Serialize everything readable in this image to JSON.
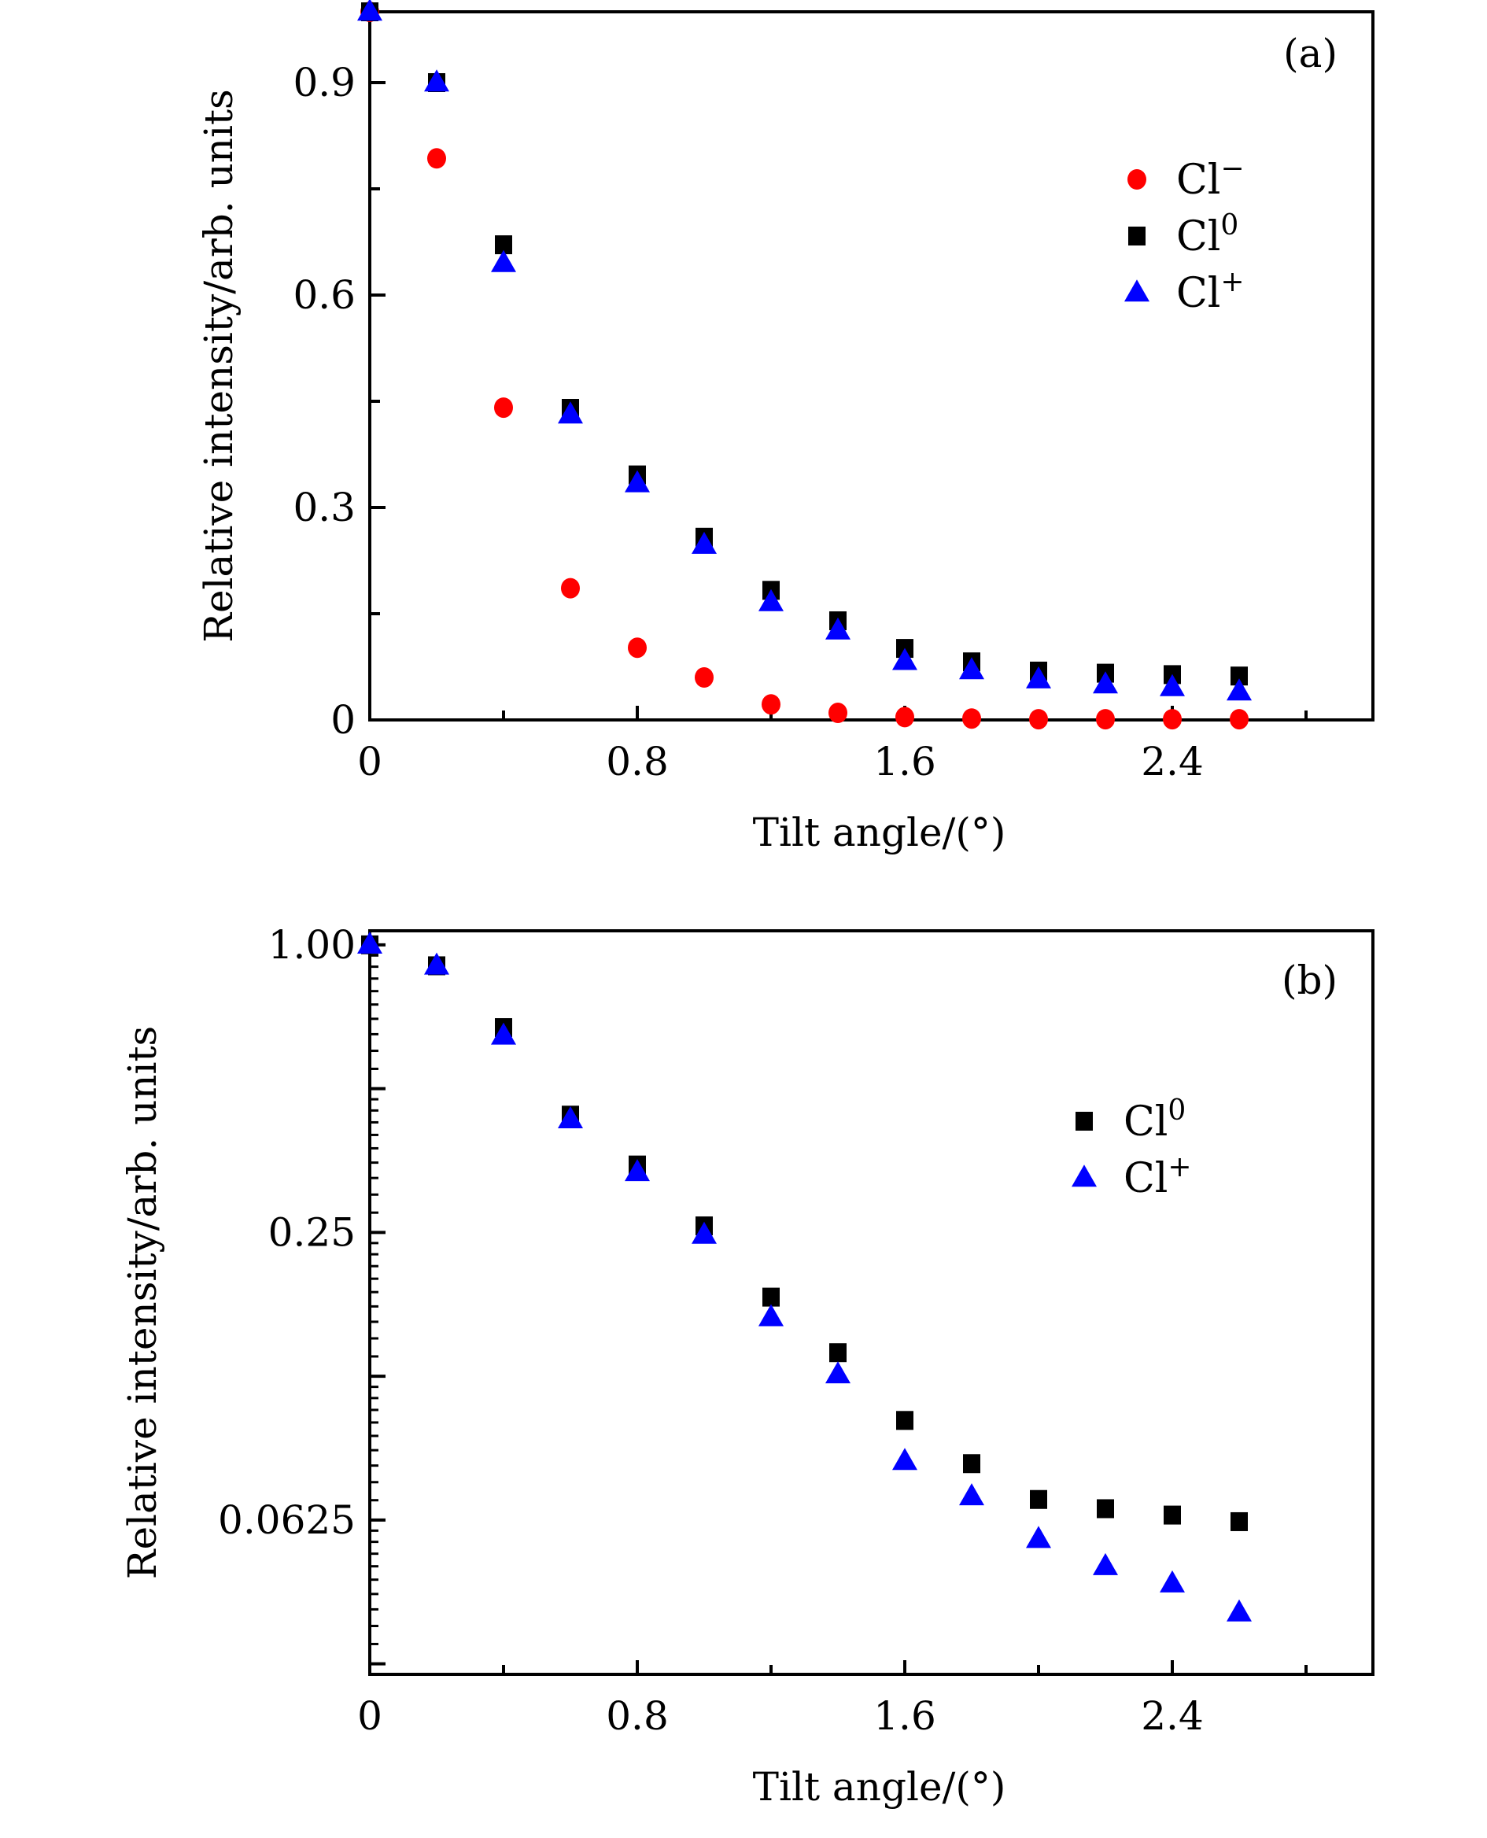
{
  "chart_data": [
    {
      "type": "scatter",
      "panel_label": "(a)",
      "xlabel": "Tilt angle/(°)",
      "ylabel": "Relative intensity/arb. units",
      "xlim": [
        0,
        3.0
      ],
      "ylim": [
        0,
        1.0
      ],
      "yscale": "linear",
      "x_ticks": [
        0,
        0.8,
        1.6,
        2.4
      ],
      "x_tick_labels": [
        "0",
        "0.8",
        "1.6",
        "2.4"
      ],
      "x_minor_step": 0.4,
      "y_ticks": [
        0,
        0.3,
        0.6,
        0.9
      ],
      "y_tick_labels": [
        "0",
        "0.3",
        "0.6",
        "0.9"
      ],
      "y_minor_step": 0.15,
      "grid": false,
      "legend_position": "upper-right",
      "x": [
        0,
        0.2,
        0.4,
        0.6,
        0.8,
        1.0,
        1.2,
        1.4,
        1.6,
        1.8,
        2.0,
        2.2,
        2.4,
        2.6
      ],
      "series": [
        {
          "name": "Cl−",
          "base": "Cl",
          "sup": "−",
          "marker": "circle",
          "color": "#ff0000",
          "values": [
            1.0,
            0.793,
            0.441,
            0.186,
            0.102,
            0.06,
            0.022,
            0.01,
            0.004,
            0.002,
            0.001,
            0.001,
            0.001,
            0.001
          ]
        },
        {
          "name": "Cl0",
          "base": "Cl",
          "sup": "0",
          "marker": "square",
          "color": "#000000",
          "values": [
            1.0,
            0.9,
            0.671,
            0.44,
            0.346,
            0.258,
            0.183,
            0.14,
            0.101,
            0.082,
            0.069,
            0.066,
            0.064,
            0.062
          ]
        },
        {
          "name": "Cl+",
          "base": "Cl",
          "sup": "+",
          "marker": "triangle",
          "color": "#0000ff",
          "values": [
            1.0,
            0.9,
            0.645,
            0.431,
            0.334,
            0.247,
            0.166,
            0.126,
            0.083,
            0.07,
            0.057,
            0.05,
            0.046,
            0.04
          ]
        }
      ]
    },
    {
      "type": "scatter",
      "panel_label": "(b)",
      "xlabel": "Tilt angle/(°)",
      "ylabel": "Relative intensity/arb. units",
      "xlim": [
        0,
        3.0
      ],
      "ylim": [
        0.0297,
        1.07
      ],
      "yscale": "log2",
      "x_ticks": [
        0,
        0.8,
        1.6,
        2.4
      ],
      "x_tick_labels": [
        "0",
        "0.8",
        "1.6",
        "2.4"
      ],
      "x_minor_step": 0.4,
      "y_ticks": [
        1.0,
        0.25,
        0.0625
      ],
      "y_tick_labels": [
        "1.00",
        "0.25",
        "0.0625"
      ],
      "y_major_unlabeled": [
        0.5,
        0.125
      ],
      "grid": false,
      "legend_position": "upper-right",
      "x": [
        0,
        0.2,
        0.4,
        0.6,
        0.8,
        1.0,
        1.2,
        1.4,
        1.6,
        1.8,
        2.0,
        2.2,
        2.4,
        2.6
      ],
      "series": [
        {
          "name": "Cl0",
          "base": "Cl",
          "sup": "0",
          "marker": "square",
          "color": "#000000",
          "values": [
            1.0,
            0.904,
            0.671,
            0.44,
            0.346,
            0.258,
            0.183,
            0.14,
            0.101,
            0.082,
            0.069,
            0.066,
            0.064,
            0.062
          ]
        },
        {
          "name": "Cl+",
          "base": "Cl",
          "sup": "+",
          "marker": "triangle",
          "color": "#0000ff",
          "values": [
            1.0,
            0.904,
            0.645,
            0.431,
            0.334,
            0.247,
            0.166,
            0.126,
            0.083,
            0.07,
            0.057,
            0.05,
            0.046,
            0.04
          ]
        }
      ]
    }
  ]
}
